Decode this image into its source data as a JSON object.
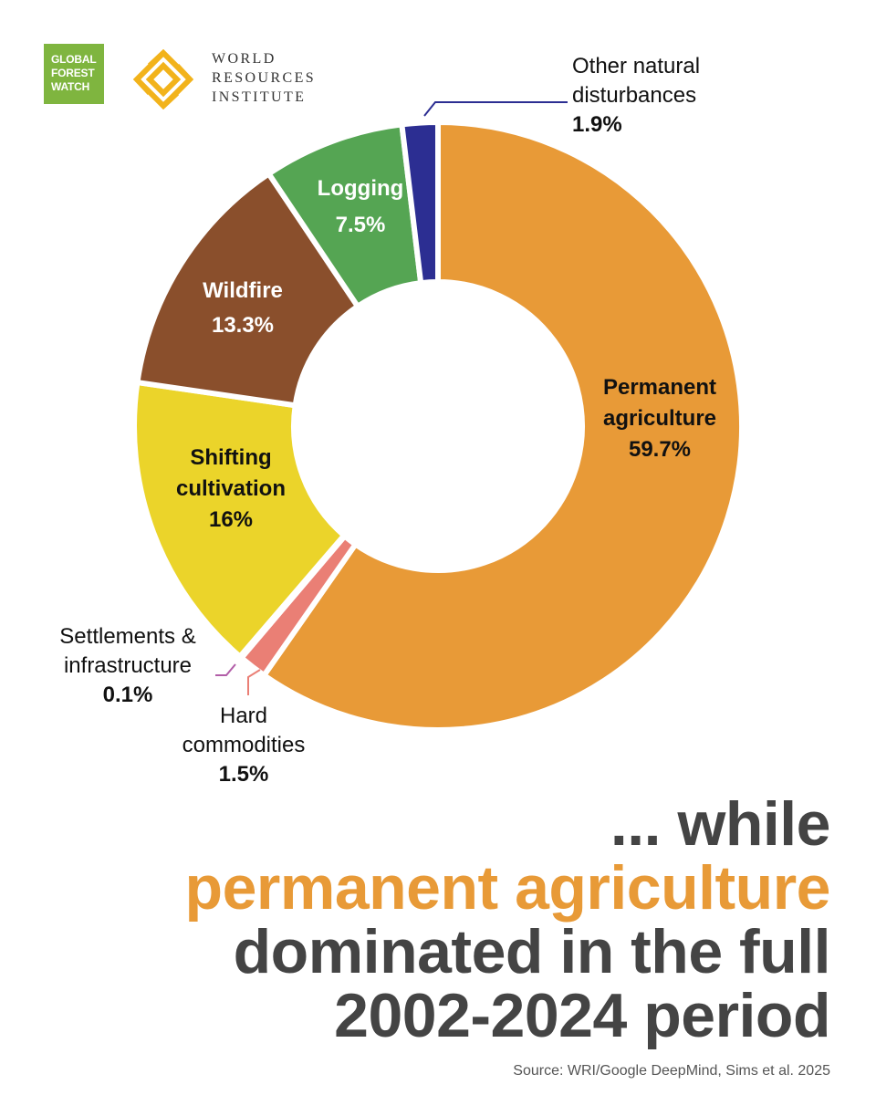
{
  "logos": {
    "gfw": [
      "GLOBAL",
      "FOREST",
      "WATCH"
    ],
    "wri": [
      "WORLD",
      "RESOURCES",
      "INSTITUTE"
    ]
  },
  "colors": {
    "permanent_agriculture": "#e89a37",
    "hard_commodities": "#ea7f75",
    "settlements": "#b25ea8",
    "shifting_cultivation": "#ebd42a",
    "wildfire": "#8a4f2c",
    "logging": "#55a553",
    "other_natural": "#2c2e92",
    "headline_gray": "#444444",
    "accent": "#e89a37"
  },
  "chart_data": {
    "type": "pie",
    "variant": "donut",
    "unit": "%",
    "slices": [
      {
        "label": "Permanent agriculture",
        "value": 59.7,
        "label_text": "59.7%",
        "color": "#e89a37"
      },
      {
        "label": "Hard commodities",
        "value": 1.5,
        "label_text": "1.5%",
        "color": "#ea7f75"
      },
      {
        "label": "Settlements & infrastructure",
        "value": 0.1,
        "label_text": "0.1%",
        "color": "#b25ea8"
      },
      {
        "label": "Shifting cultivation",
        "value": 16,
        "label_text": "16%",
        "color": "#ebd42a"
      },
      {
        "label": "Wildfire",
        "value": 13.3,
        "label_text": "13.3%",
        "color": "#8a4f2c"
      },
      {
        "label": "Logging",
        "value": 7.5,
        "label_text": "7.5%",
        "color": "#55a553"
      },
      {
        "label": "Other natural disturbances",
        "value": 1.9,
        "label_text": "1.9%",
        "color": "#2c2e92"
      }
    ]
  },
  "headline": {
    "line1": "... while",
    "line2": "permanent agriculture",
    "line3": "dominated in the full",
    "line4": "2002-2024 period"
  },
  "source": "Source: WRI/Google DeepMind, Sims et al. 2025"
}
